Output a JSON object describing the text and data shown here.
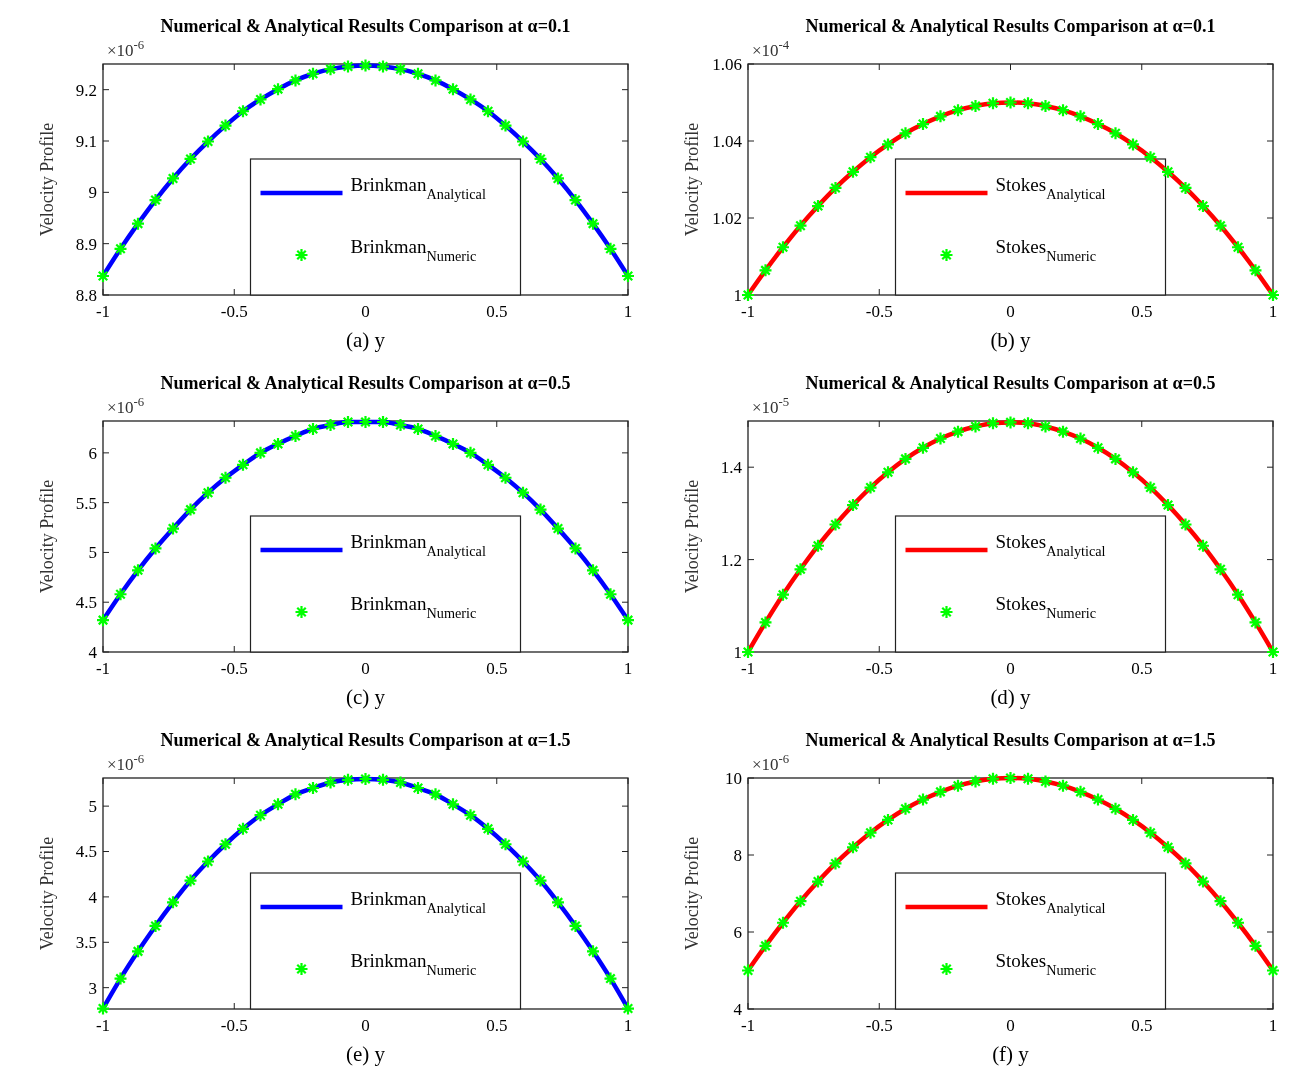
{
  "chart_data": [
    {
      "type": "line",
      "title": "Numerical & Analytical Results Comparison at α=0.1",
      "xlabel": "(a) y",
      "ylabel": "Velocity Profile",
      "annotations": [
        "×10$^{-6}$"
      ],
      "x": [
        -1,
        -0.9333,
        -0.8667,
        -0.8,
        -0.7333,
        -0.6667,
        -0.6,
        -0.5333,
        -0.4667,
        -0.4,
        -0.3333,
        -0.2667,
        -0.2,
        -0.1333,
        -0.0667,
        0,
        0.0667,
        0.1333,
        0.2,
        0.2667,
        0.3333,
        0.4,
        0.4667,
        0.5333,
        0.6,
        0.6667,
        0.7333,
        0.8,
        0.8667,
        0.9333,
        1
      ],
      "xlim": [
        -1,
        1
      ],
      "xticks": [
        -1,
        -0.5,
        0,
        0.5,
        1
      ],
      "ylim": [
        8.8,
        9.25
      ],
      "yticks": [
        8.8,
        8.9,
        9,
        9.1,
        9.2
      ],
      "legend": "bottom",
      "series": [
        {
          "name": "Brinkman$_{Analytical}$",
          "color": "#0000ff",
          "values": [
            8.837,
            8.89,
            8.939,
            8.985,
            9.027,
            9.065,
            9.099,
            9.13,
            9.158,
            9.181,
            9.201,
            9.218,
            9.231,
            9.24,
            9.245,
            9.247,
            9.245,
            9.24,
            9.231,
            9.218,
            9.201,
            9.181,
            9.158,
            9.13,
            9.099,
            9.065,
            9.027,
            8.985,
            8.939,
            8.89,
            8.837
          ]
        },
        {
          "name": "Brinkman$_{Numeric}$",
          "type": "scatter",
          "marker": "cross",
          "color": "#00ff00",
          "values": [
            8.837,
            8.89,
            8.939,
            8.985,
            9.027,
            9.065,
            9.099,
            9.13,
            9.158,
            9.181,
            9.201,
            9.218,
            9.231,
            9.24,
            9.245,
            9.247,
            9.245,
            9.24,
            9.231,
            9.218,
            9.201,
            9.181,
            9.158,
            9.13,
            9.099,
            9.065,
            9.027,
            8.985,
            8.939,
            8.89,
            8.837
          ]
        }
      ]
    },
    {
      "type": "line",
      "title": "Numerical & Analytical Results Comparison at α=0.1",
      "xlabel": "(b) y",
      "ylabel": "Velocity Profile",
      "annotations": [
        "×10$^{-4}$"
      ],
      "x": [
        -1,
        -0.9333,
        -0.8667,
        -0.8,
        -0.7333,
        -0.6667,
        -0.6,
        -0.5333,
        -0.4667,
        -0.4,
        -0.3333,
        -0.2667,
        -0.2,
        -0.1333,
        -0.0667,
        0,
        0.0667,
        0.1333,
        0.2,
        0.2667,
        0.3333,
        0.4,
        0.4667,
        0.5333,
        0.6,
        0.6667,
        0.7333,
        0.8,
        0.8667,
        0.9333,
        1
      ],
      "xlim": [
        -1,
        1
      ],
      "xticks": [
        -1,
        -0.5,
        0,
        0.5,
        1
      ],
      "ylim": [
        1,
        1.06
      ],
      "yticks": [
        1,
        1.02,
        1.04,
        1.06
      ],
      "legend": "bottom",
      "series": [
        {
          "name": "Stokes$_{Analytical}$",
          "color": "#ff0000",
          "values": [
            1,
            1.0064,
            1.0124,
            1.018,
            1.0231,
            1.0278,
            1.032,
            1.0358,
            1.0391,
            1.042,
            1.0444,
            1.0464,
            1.048,
            1.0491,
            1.0498,
            1.05,
            1.0498,
            1.0491,
            1.048,
            1.0464,
            1.0444,
            1.042,
            1.0391,
            1.0358,
            1.032,
            1.0278,
            1.0231,
            1.018,
            1.0124,
            1.0064,
            1
          ]
        },
        {
          "name": "Stokes$_{Numeric}$",
          "type": "scatter",
          "marker": "cross",
          "color": "#00ff00",
          "values": [
            1,
            1.0064,
            1.0124,
            1.018,
            1.0231,
            1.0278,
            1.032,
            1.0358,
            1.0391,
            1.042,
            1.0444,
            1.0464,
            1.048,
            1.0491,
            1.0498,
            1.05,
            1.0498,
            1.0491,
            1.048,
            1.0464,
            1.0444,
            1.042,
            1.0391,
            1.0358,
            1.032,
            1.0278,
            1.0231,
            1.018,
            1.0124,
            1.0064,
            1
          ]
        }
      ]
    },
    {
      "type": "line",
      "title": "Numerical & Analytical Results Comparison at α=0.5",
      "xlabel": "(c) y",
      "ylabel": "Velocity Profile",
      "annotations": [
        "×10$^{-6}$"
      ],
      "x": [
        -1,
        -0.9333,
        -0.8667,
        -0.8,
        -0.7333,
        -0.6667,
        -0.6,
        -0.5333,
        -0.4667,
        -0.4,
        -0.3333,
        -0.2667,
        -0.2,
        -0.1333,
        -0.0667,
        0,
        0.0667,
        0.1333,
        0.2,
        0.2667,
        0.3333,
        0.4,
        0.4667,
        0.5333,
        0.6,
        0.6667,
        0.7333,
        0.8,
        0.8667,
        0.9333,
        1
      ],
      "xlim": [
        -1,
        1
      ],
      "xticks": [
        -1,
        -0.5,
        0,
        0.5,
        1
      ],
      "ylim": [
        4,
        6.32
      ],
      "yticks": [
        4,
        4.5,
        5,
        5.5,
        6
      ],
      "legend": "bottom",
      "series": [
        {
          "name": "Brinkman$_{Analytical}$",
          "color": "#0000ff",
          "values": [
            4.32,
            4.58,
            4.82,
            5.04,
            5.24,
            5.43,
            5.6,
            5.75,
            5.88,
            6,
            6.09,
            6.17,
            6.24,
            6.28,
            6.31,
            6.31,
            6.31,
            6.28,
            6.24,
            6.17,
            6.09,
            6,
            5.88,
            5.75,
            5.6,
            5.43,
            5.24,
            5.04,
            4.82,
            4.58,
            4.32
          ]
        },
        {
          "name": "Brinkman$_{Numeric}$",
          "type": "scatter",
          "marker": "cross",
          "color": "#00ff00",
          "values": [
            4.32,
            4.58,
            4.82,
            5.04,
            5.24,
            5.43,
            5.6,
            5.75,
            5.88,
            6,
            6.09,
            6.17,
            6.24,
            6.28,
            6.31,
            6.31,
            6.31,
            6.28,
            6.24,
            6.17,
            6.09,
            6,
            5.88,
            5.75,
            5.6,
            5.43,
            5.24,
            5.04,
            4.82,
            4.58,
            4.32
          ]
        }
      ]
    },
    {
      "type": "line",
      "title": "Numerical & Analytical Results Comparison at α=0.5",
      "xlabel": "(d) y",
      "ylabel": "Velocity Profile",
      "annotations": [
        "×10$^{-5}$"
      ],
      "x": [
        -1,
        -0.9333,
        -0.8667,
        -0.8,
        -0.7333,
        -0.6667,
        -0.6,
        -0.5333,
        -0.4667,
        -0.4,
        -0.3333,
        -0.2667,
        -0.2,
        -0.1333,
        -0.0667,
        0,
        0.0667,
        0.1333,
        0.2,
        0.2667,
        0.3333,
        0.4,
        0.4667,
        0.5333,
        0.6,
        0.6667,
        0.7333,
        0.8,
        0.8667,
        0.9333,
        1
      ],
      "xlim": [
        -1,
        1
      ],
      "xticks": [
        -1,
        -0.5,
        0,
        0.5,
        1
      ],
      "ylim": [
        1,
        1.5
      ],
      "yticks": [
        1,
        1.2,
        1.4
      ],
      "legend": "bottom",
      "series": [
        {
          "name": "Stokes$_{Analytical}$",
          "color": "#ff0000",
          "values": [
            1,
            1.064,
            1.124,
            1.179,
            1.23,
            1.276,
            1.318,
            1.356,
            1.389,
            1.418,
            1.442,
            1.462,
            1.477,
            1.488,
            1.495,
            1.497,
            1.495,
            1.488,
            1.477,
            1.462,
            1.442,
            1.418,
            1.389,
            1.356,
            1.318,
            1.276,
            1.23,
            1.179,
            1.124,
            1.064,
            1
          ]
        },
        {
          "name": "Stokes$_{Numeric}$",
          "type": "scatter",
          "marker": "cross",
          "color": "#00ff00",
          "values": [
            1,
            1.064,
            1.124,
            1.179,
            1.23,
            1.276,
            1.318,
            1.356,
            1.389,
            1.418,
            1.442,
            1.462,
            1.477,
            1.488,
            1.495,
            1.497,
            1.495,
            1.488,
            1.477,
            1.462,
            1.442,
            1.418,
            1.389,
            1.356,
            1.318,
            1.276,
            1.23,
            1.179,
            1.124,
            1.064,
            1
          ]
        }
      ]
    },
    {
      "type": "line",
      "title": "Numerical & Analytical Results Comparison at α=1.5",
      "xlabel": "(e) y",
      "ylabel": "Velocity Profile",
      "annotations": [
        "×10$^{-6}$"
      ],
      "x": [
        -1,
        -0.9333,
        -0.8667,
        -0.8,
        -0.7333,
        -0.6667,
        -0.6,
        -0.5333,
        -0.4667,
        -0.4,
        -0.3333,
        -0.2667,
        -0.2,
        -0.1333,
        -0.0667,
        0,
        0.0667,
        0.1333,
        0.2,
        0.2667,
        0.3333,
        0.4,
        0.4667,
        0.5333,
        0.6,
        0.6667,
        0.7333,
        0.8,
        0.8667,
        0.9333,
        1
      ],
      "xlim": [
        -1,
        1
      ],
      "xticks": [
        -1,
        -0.5,
        0,
        0.5,
        1
      ],
      "ylim": [
        2.765,
        5.31
      ],
      "yticks": [
        3,
        3.5,
        4,
        4.5,
        5
      ],
      "legend": "bottom",
      "series": [
        {
          "name": "Brinkman$_{Analytical}$",
          "color": "#0000ff",
          "values": [
            2.77,
            3.1,
            3.4,
            3.68,
            3.94,
            4.18,
            4.39,
            4.58,
            4.75,
            4.9,
            5.02,
            5.13,
            5.2,
            5.26,
            5.29,
            5.3,
            5.29,
            5.26,
            5.2,
            5.13,
            5.02,
            4.9,
            4.75,
            4.58,
            4.39,
            4.18,
            3.94,
            3.68,
            3.4,
            3.1,
            2.77
          ]
        },
        {
          "name": "Brinkman$_{Numeric}$",
          "type": "scatter",
          "marker": "cross",
          "color": "#00ff00",
          "values": [
            2.77,
            3.1,
            3.4,
            3.68,
            3.94,
            4.18,
            4.39,
            4.58,
            4.75,
            4.9,
            5.02,
            5.13,
            5.2,
            5.26,
            5.29,
            5.3,
            5.29,
            5.26,
            5.2,
            5.13,
            5.02,
            4.9,
            4.75,
            4.58,
            4.39,
            4.18,
            3.94,
            3.68,
            3.4,
            3.1,
            2.77
          ]
        }
      ]
    },
    {
      "type": "line",
      "title": "Numerical & Analytical Results Comparison at α=1.5",
      "xlabel": "(f) y",
      "ylabel": "Velocity Profile",
      "annotations": [
        "×10$^{-6}$"
      ],
      "x": [
        -1,
        -0.9333,
        -0.8667,
        -0.8,
        -0.7333,
        -0.6667,
        -0.6,
        -0.5333,
        -0.4667,
        -0.4,
        -0.3333,
        -0.2667,
        -0.2,
        -0.1333,
        -0.0667,
        0,
        0.0667,
        0.1333,
        0.2,
        0.2667,
        0.3333,
        0.4,
        0.4667,
        0.5333,
        0.6,
        0.6667,
        0.7333,
        0.8,
        0.8667,
        0.9333,
        1
      ],
      "xlim": [
        -1,
        1
      ],
      "xticks": [
        -1,
        -0.5,
        0,
        0.5,
        1
      ],
      "ylim": [
        4,
        10
      ],
      "yticks": [
        4,
        6,
        8,
        10
      ],
      "legend": "bottom",
      "series": [
        {
          "name": "Stokes$_{Analytical}$",
          "color": "#ff0000",
          "values": [
            5,
            5.64,
            6.24,
            6.8,
            7.31,
            7.78,
            8.2,
            8.58,
            8.91,
            9.2,
            9.44,
            9.64,
            9.8,
            9.91,
            9.98,
            10,
            9.98,
            9.91,
            9.8,
            9.64,
            9.44,
            9.2,
            8.91,
            8.58,
            8.2,
            7.78,
            7.31,
            6.8,
            6.24,
            5.64,
            5
          ]
        },
        {
          "name": "Stokes$_{Numeric}$",
          "type": "scatter",
          "marker": "cross",
          "color": "#00ff00",
          "values": [
            5,
            5.64,
            6.24,
            6.8,
            7.31,
            7.78,
            8.2,
            8.58,
            8.91,
            9.2,
            9.44,
            9.64,
            9.8,
            9.91,
            9.98,
            10,
            9.98,
            9.91,
            9.8,
            9.64,
            9.44,
            9.2,
            8.91,
            8.58,
            8.2,
            7.78,
            7.31,
            6.8,
            6.24,
            5.64,
            5
          ]
        }
      ]
    }
  ]
}
